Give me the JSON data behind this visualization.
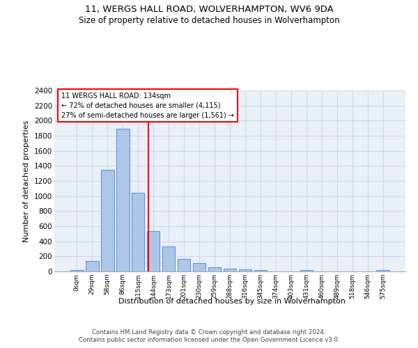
{
  "title": "11, WERGS HALL ROAD, WOLVERHAMPTON, WV6 9DA",
  "subtitle": "Size of property relative to detached houses in Wolverhampton",
  "xlabel": "Distribution of detached houses by size in Wolverhampton",
  "ylabel": "Number of detached properties",
  "bin_labels": [
    "0sqm",
    "29sqm",
    "58sqm",
    "86sqm",
    "115sqm",
    "144sqm",
    "173sqm",
    "201sqm",
    "230sqm",
    "259sqm",
    "288sqm",
    "316sqm",
    "345sqm",
    "374sqm",
    "403sqm",
    "431sqm",
    "460sqm",
    "489sqm",
    "518sqm",
    "546sqm",
    "575sqm"
  ],
  "bar_values": [
    15,
    135,
    1350,
    1890,
    1040,
    540,
    335,
    170,
    110,
    55,
    35,
    25,
    15,
    0,
    0,
    15,
    0,
    0,
    0,
    0,
    15
  ],
  "bar_color": "#aec6e8",
  "bar_edgecolor": "#5b9bd5",
  "bar_linewidth": 0.8,
  "vline_color": "red",
  "annotation_title": "11 WERGS HALL ROAD: 134sqm",
  "annotation_line2": "← 72% of detached houses are smaller (4,115)",
  "annotation_line3": "27% of semi-detached houses are larger (1,561) →",
  "annotation_bbox_edgecolor": "red",
  "ylim": [
    0,
    2400
  ],
  "yticks": [
    0,
    200,
    400,
    600,
    800,
    1000,
    1200,
    1400,
    1600,
    1800,
    2000,
    2200,
    2400
  ],
  "grid_color": "#d0d8e8",
  "background_color": "#eaf0f8",
  "footer1": "Contains HM Land Registry data © Crown copyright and database right 2024.",
  "footer2": "Contains public sector information licensed under the Open Government Licence v3.0.",
  "figsize": [
    6.0,
    5.0
  ],
  "dpi": 100
}
